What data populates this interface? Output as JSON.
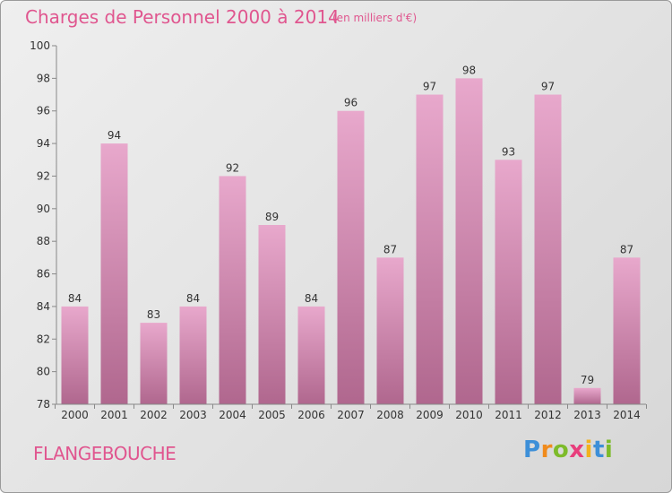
{
  "title": "Charges de Personnel 2000 à 2014",
  "subtitle": "(en milliers d'€)",
  "place": "FLANGEBOUCHE",
  "logo": {
    "text": "Proxiti",
    "letters": [
      "P",
      "r",
      "o",
      "x",
      "i",
      "t",
      "i"
    ]
  },
  "colors": {
    "accent": "#e0568f",
    "bar_top": "#e8a8cc",
    "bar_bottom": "#b0678e"
  },
  "chart_data": {
    "type": "bar",
    "title": "Charges de Personnel 2000 à 2014",
    "subtitle": "(en milliers d'€)",
    "categories": [
      "2000",
      "2001",
      "2002",
      "2003",
      "2004",
      "2005",
      "2006",
      "2007",
      "2008",
      "2009",
      "2010",
      "2011",
      "2012",
      "2013",
      "2014"
    ],
    "values": [
      84,
      94,
      83,
      84,
      92,
      89,
      84,
      96,
      87,
      97,
      98,
      93,
      97,
      79,
      87
    ],
    "ylim": [
      78,
      100
    ],
    "yticks": [
      78,
      80,
      82,
      84,
      86,
      88,
      90,
      92,
      94,
      96,
      98,
      100
    ],
    "grid": false,
    "legend": "none"
  }
}
